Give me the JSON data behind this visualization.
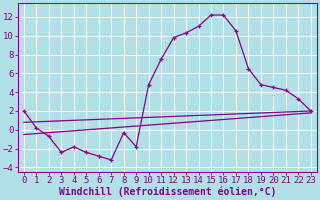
{
  "background_color": "#b2e0e8",
  "grid_color": "#ffffff",
  "line_color": "#880088",
  "xlabel": "Windchill (Refroidissement éolien,°C)",
  "xlim": [
    -0.5,
    23.5
  ],
  "ylim": [
    -4.5,
    13.5
  ],
  "yticks": [
    -4,
    -2,
    0,
    2,
    4,
    6,
    8,
    10,
    12
  ],
  "xticks": [
    0,
    1,
    2,
    3,
    4,
    5,
    6,
    7,
    8,
    9,
    10,
    11,
    12,
    13,
    14,
    15,
    16,
    17,
    18,
    19,
    20,
    21,
    22,
    23
  ],
  "main_x": [
    0,
    1,
    2,
    3,
    4,
    5,
    6,
    7,
    8,
    9,
    10,
    11,
    12,
    13,
    14,
    15,
    16,
    17,
    18,
    19,
    20,
    21,
    22,
    23
  ],
  "main_y": [
    2.0,
    0.2,
    -0.7,
    -2.4,
    -1.8,
    -2.4,
    -2.8,
    -3.2,
    -0.3,
    -1.8,
    4.8,
    7.5,
    9.8,
    10.3,
    11.0,
    12.2,
    12.2,
    10.5,
    6.5,
    4.8,
    4.5,
    4.2,
    3.3,
    2.0
  ],
  "trend1_x": [
    0,
    23
  ],
  "trend1_y": [
    0.8,
    2.0
  ],
  "trend2_x": [
    0,
    23
  ],
  "trend2_y": [
    -0.5,
    1.8
  ],
  "font_size_xlabel": 7,
  "font_size_tick": 6.5
}
